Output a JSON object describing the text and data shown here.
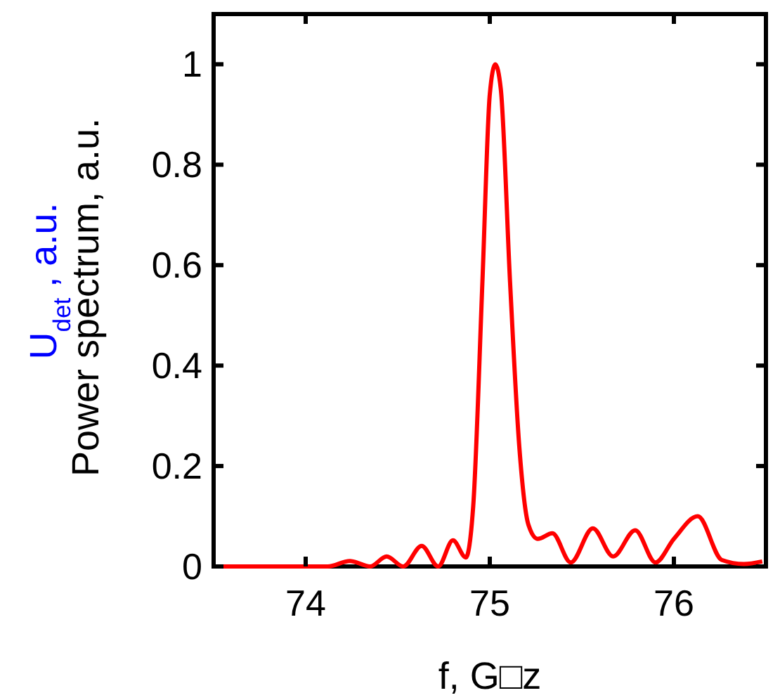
{
  "chart_data": {
    "type": "line",
    "xlabel": "f, G□z",
    "ylabel": "Power spectrum, a.u.",
    "annotations": [
      "U$_{det}$ , a.u."
    ],
    "xlim": [
      73.5,
      76.5
    ],
    "xticks": [
      74,
      75,
      76
    ],
    "ylim": [
      0,
      1.1
    ],
    "yticks": [
      0,
      0.2,
      0.4,
      0.6,
      0.8,
      1
    ],
    "grid": false,
    "marker": "none",
    "line_style": "solid",
    "series": [
      {
        "color": "#ff0000",
        "x": [
          73.5,
          74.12,
          74.24,
          74.35,
          74.44,
          74.53,
          74.63,
          74.72,
          74.8,
          74.87,
          74.91,
          74.96,
          75.0,
          75.03,
          75.06,
          75.11,
          75.16,
          75.21,
          75.26,
          75.34,
          75.44,
          75.56,
          75.67,
          75.79,
          75.9,
          76.0,
          76.13,
          76.26,
          76.38,
          76.48
        ],
        "values": [
          0,
          0,
          0.011,
          0,
          0.02,
          0,
          0.041,
          0,
          0.052,
          0.018,
          0.12,
          0.567,
          0.94,
          1.0,
          0.95,
          0.567,
          0.24,
          0.083,
          0.055,
          0.066,
          0.008,
          0.076,
          0.02,
          0.072,
          0.008,
          0.055,
          0.1,
          0.013,
          0.005,
          0.01
        ]
      }
    ]
  }
}
